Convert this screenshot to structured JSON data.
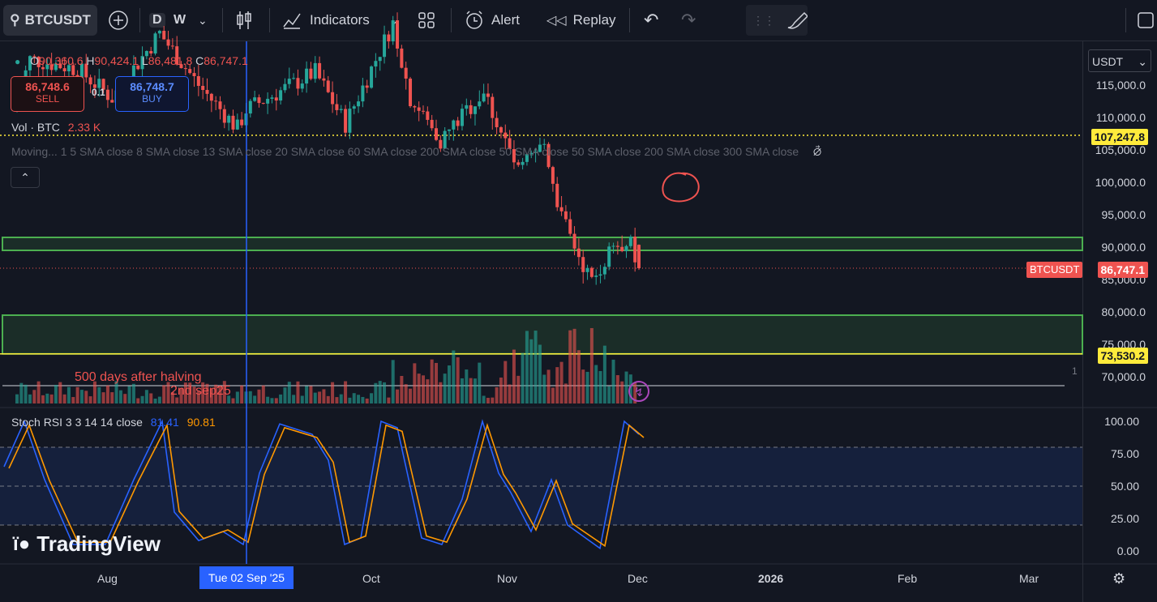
{
  "toolbar": {
    "symbol": "BTCUSDT",
    "intervals": [
      "D",
      "W"
    ],
    "indicators_label": "Indicators",
    "alert_label": "Alert",
    "replay_label": "Replay"
  },
  "legend": {
    "ohlc_dot": "●",
    "o_label": "O",
    "o_value": "90,360.6",
    "h_label": "H",
    "h_value": "90,424.1",
    "l_label": "L",
    "l_value": "86,481.8",
    "c_label": "C",
    "c_value": "86,747.1",
    "sell_price": "86,748.6",
    "sell_label": "SELL",
    "spread": "0.1",
    "buy_price": "86,748.7",
    "buy_label": "BUY",
    "vol_label": "Vol · BTC",
    "vol_value": "2.33 K",
    "ma_text": "Moving...  1 5 SMA close 8 SMA close 13 SMA close 20 SMA close 60 SMA close 200 SMA close 50 SMA close 50 SMA close 200 SMA close 300 SMA close",
    "stoch_label": "Stoch RSI 3 3 14 14 close",
    "stoch_k": "81.41",
    "stoch_d": "90.81"
  },
  "annotation": {
    "line1": "500 days after halving",
    "line2": "2nd sep25"
  },
  "watermark": "TradingView",
  "price_axis": {
    "currency": "USDT",
    "labels": [
      "115,000.0",
      "110,000.0",
      "105,000.0",
      "100,000.0",
      "95,000.0",
      "90,000.0",
      "85,000.0",
      "80,000.0",
      "75,000.0",
      "70,000.0"
    ],
    "level_high": "107,247.8",
    "current_symbol": "BTCUSDT",
    "current_price": "86,747.1",
    "level_low": "73,530.2",
    "scale_marker": "1"
  },
  "rsi_axis": {
    "labels": [
      "100.00",
      "75.00",
      "50.00",
      "25.00",
      "0.00"
    ]
  },
  "time_axis": {
    "labels": [
      "Aug",
      "Oct",
      "Nov",
      "Dec",
      "2026",
      "Feb",
      "Mar"
    ],
    "crosshair_label": "Tue 02 Sep '25"
  },
  "colors": {
    "up": "#26a69a",
    "down": "#ef5350",
    "crosshair": "#2962ff",
    "zone": "#4caf50",
    "level": "#ffeb3b",
    "stoch_k": "#2962ff",
    "stoch_d": "#ff9800"
  },
  "chart_data": {
    "type": "candlestick",
    "ohlc_last": {
      "open": 90360.6,
      "high": 90424.1,
      "low": 86481.8,
      "close": 86747.1
    },
    "zones": [
      [
        89500,
        91500
      ],
      [
        73530.2,
        79500
      ]
    ],
    "horizontal_levels": [
      107247.8,
      73530.2
    ],
    "close_path": [
      {
        "date": "2025-07-10",
        "close": 111000
      },
      {
        "date": "2025-07-14",
        "close": 119000
      },
      {
        "date": "2025-07-25",
        "close": 117500
      },
      {
        "date": "2025-08-02",
        "close": 113000
      },
      {
        "date": "2025-08-13",
        "close": 123000
      },
      {
        "date": "2025-08-22",
        "close": 115000
      },
      {
        "date": "2025-08-31",
        "close": 108300
      },
      {
        "date": "2025-09-02",
        "close": 111200
      },
      {
        "date": "2025-09-18",
        "close": 117000
      },
      {
        "date": "2025-09-25",
        "close": 109000
      },
      {
        "date": "2025-10-06",
        "close": 124600
      },
      {
        "date": "2025-10-10",
        "close": 113000
      },
      {
        "date": "2025-10-17",
        "close": 106500
      },
      {
        "date": "2025-10-27",
        "close": 114000
      },
      {
        "date": "2025-11-04",
        "close": 101500
      },
      {
        "date": "2025-11-10",
        "close": 106000
      },
      {
        "date": "2025-11-14",
        "close": 94500
      },
      {
        "date": "2025-11-21",
        "close": 84500
      },
      {
        "date": "2025-11-26",
        "close": 90500
      },
      {
        "date": "2025-11-30",
        "close": 90360
      },
      {
        "date": "2025-12-01",
        "close": 86747
      }
    ],
    "stoch_rsi": {
      "k_last": 81.41,
      "d_last": 90.81,
      "bands": [
        80,
        50,
        20
      ],
      "ylim": [
        0,
        100
      ]
    }
  }
}
